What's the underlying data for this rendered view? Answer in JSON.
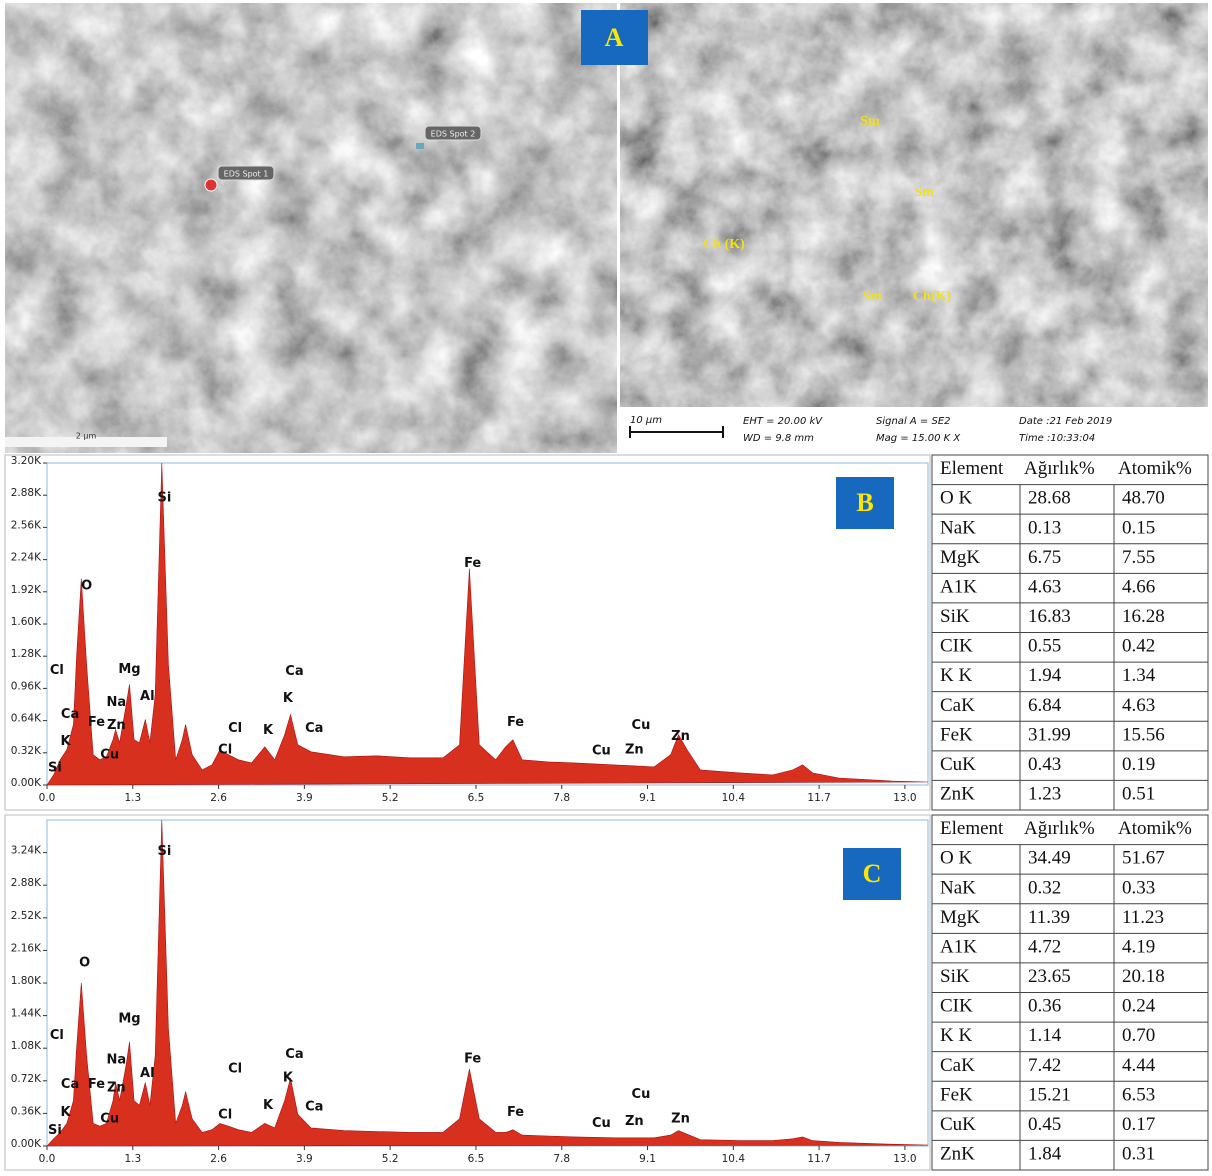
{
  "sem": {
    "label": "A",
    "spots": [
      "EDS Spot 1",
      "EDS Spot 2"
    ],
    "scale_left": "2 µm",
    "minerals": [
      "Sm",
      "Sm",
      "Ch (K)",
      "Sm",
      "Ch(K)"
    ],
    "scale_right": "10 µm",
    "info": [
      "EHT = 20.00 kV",
      "WD =  9.8 mm",
      "Signal A = SE2",
      "Mag =  15.00 K X",
      "Date :21 Feb 2019",
      "Time :10:33:04"
    ]
  },
  "chart_data": [
    {
      "type": "area",
      "panel_label": "B",
      "color": "#d8301e",
      "x": [
        0,
        0.1,
        0.2,
        0.3,
        0.4,
        0.45,
        0.52,
        0.6,
        0.7,
        0.8,
        0.9,
        1.0,
        1.04,
        1.1,
        1.2,
        1.25,
        1.32,
        1.4,
        1.49,
        1.56,
        1.64,
        1.74,
        1.84,
        1.95,
        2.05,
        2.1,
        2.2,
        2.35,
        2.5,
        2.62,
        2.75,
        2.9,
        3.1,
        3.3,
        3.45,
        3.6,
        3.69,
        3.8,
        4.0,
        4.5,
        5.0,
        5.5,
        6.0,
        6.25,
        6.4,
        6.55,
        6.8,
        6.95,
        7.06,
        7.2,
        7.6,
        8.0,
        8.6,
        9.2,
        9.45,
        9.57,
        9.7,
        9.9,
        10.5,
        11.0,
        11.3,
        11.45,
        11.6,
        12.0,
        12.8,
        13.35
      ],
      "values": [
        0,
        100,
        250,
        350,
        600,
        1300,
        2050,
        1200,
        300,
        250,
        280,
        450,
        550,
        420,
        800,
        1000,
        450,
        420,
        650,
        420,
        900,
        3200,
        1200,
        250,
        450,
        600,
        300,
        150,
        200,
        350,
        300,
        250,
        220,
        380,
        250,
        500,
        700,
        400,
        330,
        280,
        290,
        270,
        270,
        400,
        2150,
        400,
        250,
        380,
        450,
        250,
        230,
        220,
        200,
        180,
        300,
        500,
        350,
        150,
        120,
        100,
        150,
        200,
        120,
        70,
        40,
        30
      ],
      "xlim": [
        0,
        13.35
      ],
      "ylim": [
        0,
        3200
      ],
      "xticks": [
        {
          "value": 0,
          "label": "0.0"
        },
        1.3,
        2.6,
        3.9,
        5.2,
        6.5,
        7.8,
        9.1,
        10.4,
        11.7,
        {
          "value": 13,
          "label": "13.0"
        }
      ],
      "yticks": [
        {
          "value": 0,
          "label": "0.00K"
        },
        {
          "value": 320,
          "label": "0.32K"
        },
        {
          "value": 640,
          "label": "0.64K"
        },
        {
          "value": 960,
          "label": "0.96K"
        },
        {
          "value": 1280,
          "label": "1.28K"
        },
        {
          "value": 1600,
          "label": "1.60K"
        },
        {
          "value": 1920,
          "label": "1.92K"
        },
        {
          "value": 2240,
          "label": "2.24K"
        },
        {
          "value": 2560,
          "label": "2.56K"
        },
        {
          "value": 2880,
          "label": "2.88K"
        },
        {
          "value": 3200,
          "label": "3.20K"
        }
      ],
      "annotations": [
        {
          "text": "Si",
          "x": 1.78,
          "y": 2850
        },
        {
          "text": "O",
          "x": 0.6,
          "y": 1980
        },
        {
          "text": "Fe",
          "x": 6.45,
          "y": 2200
        },
        {
          "text": "Mg",
          "x": 1.25,
          "y": 1150
        },
        {
          "text": "Ca",
          "x": 3.75,
          "y": 1130
        },
        {
          "text": "Cl",
          "x": 0.15,
          "y": 1140
        },
        {
          "text": "Na",
          "x": 1.05,
          "y": 820
        },
        {
          "text": "Al",
          "x": 1.52,
          "y": 880
        },
        {
          "text": "Ca",
          "x": 0.35,
          "y": 700
        },
        {
          "text": "Fe",
          "x": 0.75,
          "y": 620
        },
        {
          "text": "Zn",
          "x": 1.05,
          "y": 590
        },
        {
          "text": "K",
          "x": 3.65,
          "y": 860
        },
        {
          "text": "Ca",
          "x": 4.05,
          "y": 560
        },
        {
          "text": "Cl",
          "x": 2.85,
          "y": 560
        },
        {
          "text": "K",
          "x": 3.35,
          "y": 540
        },
        {
          "text": "Cl",
          "x": 2.7,
          "y": 350
        },
        {
          "text": "Cu",
          "x": 0.95,
          "y": 300
        },
        {
          "text": "K",
          "x": 0.28,
          "y": 430
        },
        {
          "text": "Si",
          "x": 0.12,
          "y": 170
        },
        {
          "text": "Fe",
          "x": 7.1,
          "y": 620
        },
        {
          "text": "Cu",
          "x": 8.4,
          "y": 340
        },
        {
          "text": "Zn",
          "x": 8.9,
          "y": 350
        },
        {
          "text": "Cu",
          "x": 9.0,
          "y": 590
        },
        {
          "text": "Zn",
          "x": 9.6,
          "y": 480
        }
      ]
    },
    {
      "type": "area",
      "panel_label": "C",
      "color": "#d8301e",
      "x": [
        0,
        0.1,
        0.2,
        0.3,
        0.4,
        0.45,
        0.52,
        0.6,
        0.7,
        0.8,
        0.9,
        1.0,
        1.04,
        1.1,
        1.2,
        1.25,
        1.32,
        1.4,
        1.49,
        1.56,
        1.64,
        1.74,
        1.84,
        1.95,
        2.05,
        2.1,
        2.2,
        2.35,
        2.5,
        2.62,
        2.75,
        2.9,
        3.1,
        3.3,
        3.45,
        3.6,
        3.69,
        3.8,
        4.0,
        4.5,
        5.0,
        5.5,
        6.0,
        6.25,
        6.4,
        6.55,
        6.8,
        6.95,
        7.06,
        7.2,
        7.6,
        8.0,
        8.6,
        9.2,
        9.45,
        9.57,
        9.7,
        9.9,
        10.5,
        11.0,
        11.3,
        11.45,
        11.6,
        12.0,
        12.8,
        13.35
      ],
      "values": [
        0,
        80,
        150,
        250,
        500,
        1100,
        1800,
        1000,
        250,
        220,
        250,
        500,
        700,
        500,
        900,
        1150,
        500,
        450,
        700,
        450,
        1000,
        3600,
        1300,
        250,
        450,
        600,
        300,
        150,
        180,
        250,
        220,
        180,
        150,
        250,
        200,
        500,
        750,
        350,
        200,
        170,
        160,
        150,
        150,
        300,
        850,
        300,
        150,
        150,
        180,
        120,
        110,
        100,
        90,
        90,
        120,
        170,
        130,
        70,
        60,
        60,
        80,
        100,
        60,
        40,
        20,
        10
      ],
      "xlim": [
        0,
        13.35
      ],
      "ylim": [
        0,
        3600
      ],
      "xticks": [
        {
          "value": 0,
          "label": "0.0"
        },
        1.3,
        2.6,
        3.9,
        5.2,
        6.5,
        7.8,
        9.1,
        10.4,
        11.7,
        {
          "value": 13,
          "label": "13.0"
        }
      ],
      "yticks": [
        {
          "value": 0,
          "label": "0.00K"
        },
        {
          "value": 360,
          "label": "0.36K"
        },
        {
          "value": 720,
          "label": "0.72K"
        },
        {
          "value": 1080,
          "label": "1.08K"
        },
        {
          "value": 1440,
          "label": "1.44K"
        },
        {
          "value": 1800,
          "label": "1.80K"
        },
        {
          "value": 2160,
          "label": "2.16K"
        },
        {
          "value": 2520,
          "label": "2.52K"
        },
        {
          "value": 2880,
          "label": "2.88K"
        },
        {
          "value": 3240,
          "label": "3.24K"
        }
      ],
      "annotations": [
        {
          "text": "Si",
          "x": 1.78,
          "y": 3250
        },
        {
          "text": "O",
          "x": 0.57,
          "y": 2020
        },
        {
          "text": "Fe",
          "x": 6.45,
          "y": 960
        },
        {
          "text": "Mg",
          "x": 1.25,
          "y": 1400
        },
        {
          "text": "Ca",
          "x": 3.75,
          "y": 1010
        },
        {
          "text": "Cl",
          "x": 0.15,
          "y": 1220
        },
        {
          "text": "Na",
          "x": 1.05,
          "y": 950
        },
        {
          "text": "Al",
          "x": 1.52,
          "y": 800
        },
        {
          "text": "Ca",
          "x": 0.35,
          "y": 680
        },
        {
          "text": "Fe",
          "x": 0.75,
          "y": 680
        },
        {
          "text": "Zn",
          "x": 1.05,
          "y": 640
        },
        {
          "text": "K",
          "x": 3.65,
          "y": 750
        },
        {
          "text": "Ca",
          "x": 4.05,
          "y": 430
        },
        {
          "text": "Cl",
          "x": 2.85,
          "y": 850
        },
        {
          "text": "K",
          "x": 3.35,
          "y": 450
        },
        {
          "text": "Cl",
          "x": 2.7,
          "y": 340
        },
        {
          "text": "Cu",
          "x": 0.95,
          "y": 300
        },
        {
          "text": "K",
          "x": 0.28,
          "y": 370
        },
        {
          "text": "Si",
          "x": 0.12,
          "y": 170
        },
        {
          "text": "Fe",
          "x": 7.1,
          "y": 370
        },
        {
          "text": "Cu",
          "x": 8.4,
          "y": 250
        },
        {
          "text": "Zn",
          "x": 8.9,
          "y": 270
        },
        {
          "text": "Cu",
          "x": 9.0,
          "y": 570
        },
        {
          "text": "Zn",
          "x": 9.6,
          "y": 300
        }
      ]
    }
  ],
  "tables": [
    {
      "header": [
        "Element",
        "Ağırlık%",
        "Atomik%"
      ],
      "rows": [
        [
          "O K",
          "28.68",
          "48.70"
        ],
        [
          "NaK",
          "0.13",
          "0.15"
        ],
        [
          "MgK",
          "6.75",
          "7.55"
        ],
        [
          "A1K",
          "4.63",
          "4.66"
        ],
        [
          "SiK",
          "16.83",
          "16.28"
        ],
        [
          "CIK",
          "0.55",
          "0.42"
        ],
        [
          "K K",
          "1.94",
          "1.34"
        ],
        [
          "CaK",
          "6.84",
          "4.63"
        ],
        [
          "FeK",
          "31.99",
          "15.56"
        ],
        [
          "CuK",
          "0.43",
          "0.19"
        ],
        [
          "ZnK",
          "1.23",
          "0.51"
        ]
      ]
    },
    {
      "header": [
        "Element",
        "Ağırlık%",
        "Atomik%"
      ],
      "rows": [
        [
          "O K",
          "34.49",
          "51.67"
        ],
        [
          "NaK",
          "0.32",
          "0.33"
        ],
        [
          "MgK",
          "11.39",
          "11.23"
        ],
        [
          "A1K",
          "4.72",
          "4.19"
        ],
        [
          "SiK",
          "23.65",
          "20.18"
        ],
        [
          "CIK",
          "0.36",
          "0.24"
        ],
        [
          "K K",
          "1.14",
          "0.70"
        ],
        [
          "CaK",
          "7.42",
          "4.44"
        ],
        [
          "FeK",
          "15.21",
          "6.53"
        ],
        [
          "CuK",
          "0.45",
          "0.17"
        ],
        [
          "ZnK",
          "1.84",
          "0.31"
        ]
      ]
    }
  ]
}
